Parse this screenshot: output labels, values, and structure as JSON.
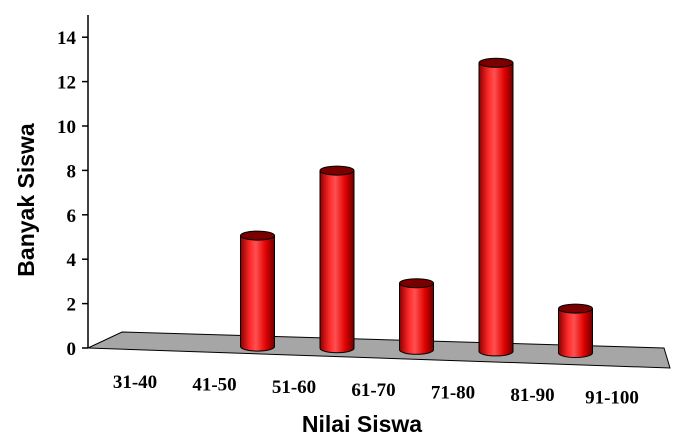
{
  "chart_data": {
    "type": "bar",
    "title": "",
    "xlabel": "Nilai Siswa",
    "ylabel": "Banyak Siswa",
    "categories": [
      "31-40",
      "41-50",
      "51-60",
      "61-70",
      "71-80",
      "81-90",
      "91-100"
    ],
    "values": [
      0,
      5,
      8,
      3,
      13,
      2,
      0
    ],
    "ylim": [
      0,
      14
    ],
    "yticks": [
      "0",
      "2",
      "4",
      "6",
      "8",
      "10",
      "12",
      "14"
    ],
    "grid": false,
    "legend": "none",
    "style": "3d-cylinder",
    "colors": {
      "bar": "#ff0000",
      "bar_dark": "#7a0000",
      "floor": "#a6a6a6",
      "axis": "#000000"
    }
  }
}
